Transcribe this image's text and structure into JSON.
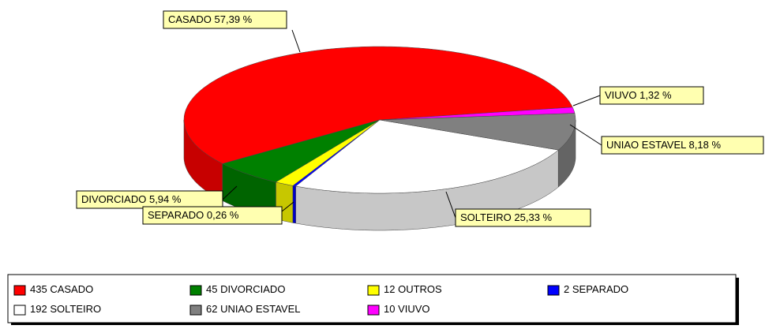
{
  "chart_data": {
    "type": "pie",
    "categories": [
      "CASADO",
      "DIVORCIADO",
      "OUTROS",
      "SEPARADO",
      "SOLTEIRO",
      "UNIAO ESTAVEL",
      "VIUVO"
    ],
    "counts": [
      435,
      45,
      12,
      2,
      192,
      62,
      10
    ],
    "values": [
      57.39,
      5.94,
      1.58,
      0.26,
      25.33,
      8.18,
      1.32
    ],
    "value_labels": [
      "57,39 %",
      "5,94 %",
      null,
      "0,26 %",
      "25,33 %",
      "8,18 %",
      "1,32 %"
    ],
    "colors": [
      "#ff0000",
      "#008000",
      "#ffff00",
      "#0000ff",
      "#ffffff",
      "#808080",
      "#ff00ff"
    ],
    "legend": "bottom"
  }
}
